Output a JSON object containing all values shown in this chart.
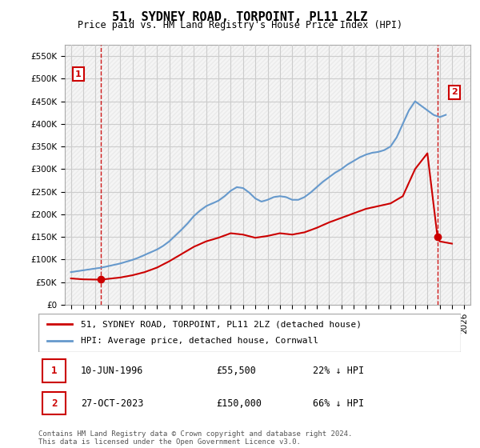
{
  "title": "51, SYDNEY ROAD, TORPOINT, PL11 2LZ",
  "subtitle": "Price paid vs. HM Land Registry's House Price Index (HPI)",
  "ylabel_values": [
    0,
    50000,
    100000,
    150000,
    200000,
    250000,
    300000,
    350000,
    400000,
    450000,
    500000,
    550000
  ],
  "ylim": [
    0,
    575000
  ],
  "xlim_left": 1993.5,
  "xlim_right": 2026.5,
  "xticks": [
    1994,
    1995,
    1996,
    1997,
    1998,
    1999,
    2000,
    2001,
    2002,
    2003,
    2004,
    2005,
    2006,
    2007,
    2008,
    2009,
    2010,
    2011,
    2012,
    2013,
    2014,
    2015,
    2016,
    2017,
    2018,
    2019,
    2020,
    2021,
    2022,
    2023,
    2024,
    2025,
    2026
  ],
  "hpi_color": "#6699cc",
  "property_color": "#cc0000",
  "vline_color": "#cc0000",
  "background_color": "#f5f5f5",
  "grid_color": "#cccccc",
  "marker1_year": 1996.44,
  "marker1_value": 55500,
  "marker2_year": 2023.82,
  "marker2_value": 150000,
  "legend_label_property": "51, SYDNEY ROAD, TORPOINT, PL11 2LZ (detached house)",
  "legend_label_hpi": "HPI: Average price, detached house, Cornwall",
  "transaction1_label": "1",
  "transaction1_date": "10-JUN-1996",
  "transaction1_price": "£55,500",
  "transaction1_hpi": "22% ↓ HPI",
  "transaction2_label": "2",
  "transaction2_date": "27-OCT-2023",
  "transaction2_price": "£150,000",
  "transaction2_hpi": "66% ↓ HPI",
  "footer": "Contains HM Land Registry data © Crown copyright and database right 2024.\nThis data is licensed under the Open Government Licence v3.0.",
  "hpi_years": [
    1994,
    1994.5,
    1995,
    1995.5,
    1996,
    1996.5,
    1997,
    1997.5,
    1998,
    1998.5,
    1999,
    1999.5,
    2000,
    2000.5,
    2001,
    2001.5,
    2002,
    2002.5,
    2003,
    2003.5,
    2004,
    2004.5,
    2005,
    2005.5,
    2006,
    2006.5,
    2007,
    2007.5,
    2008,
    2008.5,
    2009,
    2009.5,
    2010,
    2010.5,
    2011,
    2011.5,
    2012,
    2012.5,
    2013,
    2013.5,
    2014,
    2014.5,
    2015,
    2015.5,
    2016,
    2016.5,
    2017,
    2017.5,
    2018,
    2018.5,
    2019,
    2019.5,
    2020,
    2020.5,
    2021,
    2021.5,
    2022,
    2022.5,
    2023,
    2023.5,
    2024,
    2024.5
  ],
  "hpi_values": [
    72000,
    74000,
    76000,
    78000,
    80000,
    82000,
    85000,
    88000,
    91000,
    95000,
    99000,
    104000,
    110000,
    116000,
    122000,
    130000,
    140000,
    153000,
    166000,
    180000,
    196000,
    208000,
    218000,
    224000,
    230000,
    240000,
    252000,
    260000,
    258000,
    248000,
    235000,
    228000,
    232000,
    238000,
    240000,
    238000,
    232000,
    232000,
    238000,
    248000,
    260000,
    272000,
    282000,
    292000,
    300000,
    310000,
    318000,
    326000,
    332000,
    336000,
    338000,
    342000,
    350000,
    370000,
    400000,
    430000,
    450000,
    440000,
    430000,
    420000,
    415000,
    420000
  ],
  "prop_years": [
    1994,
    1995,
    1996,
    1996.44,
    1997,
    1998,
    1999,
    2000,
    2001,
    2002,
    2003,
    2004,
    2005,
    2006,
    2007,
    2008,
    2009,
    2010,
    2011,
    2012,
    2013,
    2014,
    2015,
    2016,
    2017,
    2018,
    2019,
    2020,
    2021,
    2022,
    2023,
    2023.82,
    2024,
    2025
  ],
  "prop_values": [
    58000,
    56000,
    55500,
    55500,
    57000,
    60000,
    65000,
    72000,
    82000,
    96000,
    112000,
    128000,
    140000,
    148000,
    158000,
    155000,
    148000,
    152000,
    158000,
    155000,
    160000,
    170000,
    182000,
    192000,
    202000,
    212000,
    218000,
    224000,
    240000,
    300000,
    335000,
    150000,
    140000,
    135000
  ]
}
